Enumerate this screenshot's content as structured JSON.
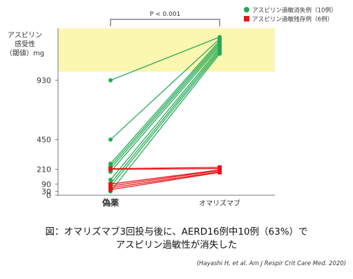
{
  "chart_data": {
    "type": "line",
    "categories": [
      "偽薬",
      "オマリズマブ"
    ],
    "ylabel_lines": [
      "アスピリン",
      "感受性",
      "（閾値）mg"
    ],
    "yticks": [
      0,
      30,
      90,
      210,
      450,
      930
    ],
    "ylim": [
      0,
      1350
    ],
    "shaded_band": [
      1000,
      1350
    ],
    "significance": "P < 0.001",
    "grid": false,
    "legend": {
      "placement": "top-right",
      "entries": [
        {
          "label": "アスピリン過敏消失例（10例）",
          "color": "#22aa55",
          "marker": "circle"
        },
        {
          "label": "アスピリン過敏残存例（6例）",
          "color": "#e8141a",
          "marker": "square"
        }
      ]
    },
    "series": [
      {
        "group": "resolved",
        "values": [
          930,
          1280
        ]
      },
      {
        "group": "resolved",
        "values": [
          450,
          1265
        ]
      },
      {
        "group": "resolved",
        "values": [
          255,
          1250
        ]
      },
      {
        "group": "resolved",
        "values": [
          235,
          1235
        ]
      },
      {
        "group": "resolved",
        "values": [
          215,
          1220
        ]
      },
      {
        "group": "resolved",
        "values": [
          190,
          1205
        ]
      },
      {
        "group": "resolved",
        "values": [
          125,
          1190
        ]
      },
      {
        "group": "resolved",
        "values": [
          95,
          1175
        ]
      },
      {
        "group": "resolved",
        "values": [
          70,
          1160
        ]
      },
      {
        "group": "resolved",
        "values": [
          30,
          1145
        ]
      },
      {
        "group": "persistent",
        "values": [
          215,
          225
        ]
      },
      {
        "group": "persistent",
        "values": [
          210,
          215
        ]
      },
      {
        "group": "persistent",
        "values": [
          90,
          205
        ]
      },
      {
        "group": "persistent",
        "values": [
          75,
          200
        ]
      },
      {
        "group": "persistent",
        "values": [
          60,
          190
        ]
      },
      {
        "group": "persistent",
        "values": [
          45,
          185
        ]
      }
    ]
  },
  "caption": {
    "line1": "図：オマリズマブ3回投与後に、AERD16例中10例（63%）で",
    "line2": "アスピリン過敏性が消失した"
  },
  "citation": "(Hayashi H, et al. Am J Respir Crit Care Med. 2020)",
  "colors": {
    "resolved": "#22aa55",
    "persistent": "#e8141a",
    "band": "#fbf6b0"
  }
}
